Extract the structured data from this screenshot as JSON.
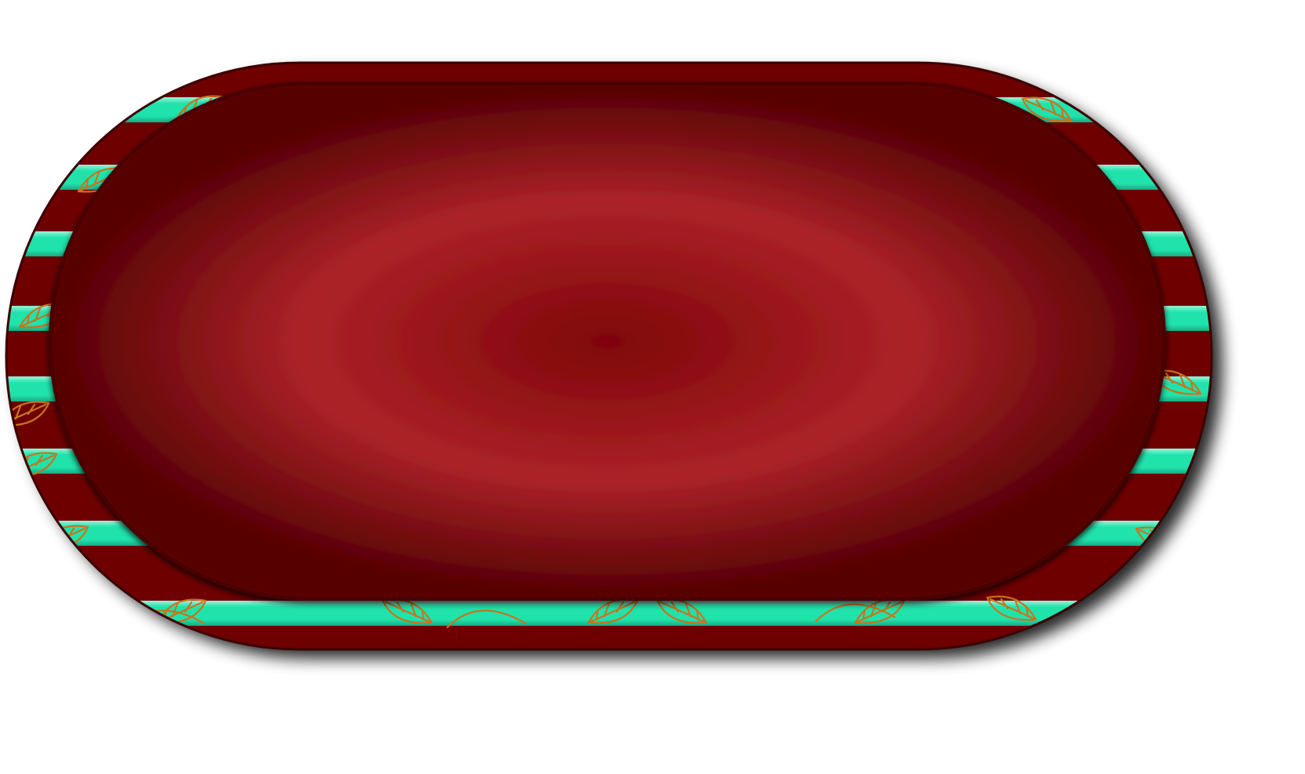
{
  "badge": {
    "name": "striped-oval-badge",
    "colors": {
      "frame_dark": "#6e0206",
      "frame_mid": "#8a0a0e",
      "stripe_teal": "#20e3ac",
      "leaf_stroke": "#c8741e",
      "panel_edge": "#5c0204",
      "panel_center": "#7f0508",
      "panel_mid": "#ab2328",
      "panel_outer": "#560003",
      "shadow": "#000000"
    },
    "stripe_count": 8,
    "content_text": ""
  }
}
